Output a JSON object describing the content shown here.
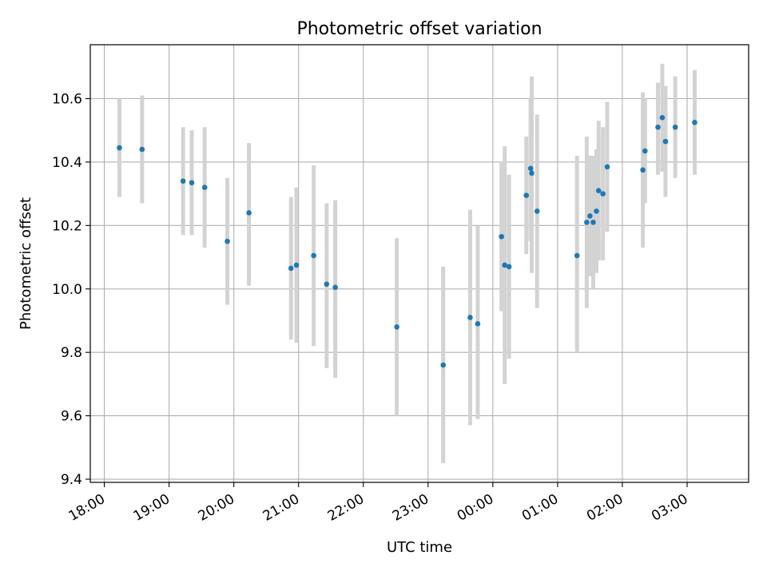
{
  "chart_data": {
    "type": "scatter",
    "title": "Photometric offset variation",
    "xlabel": "UTC time",
    "ylabel": "Photometric offset",
    "xlim": [
      "17:47",
      "03:57"
    ],
    "ylim": [
      9.39,
      10.77
    ],
    "grid": true,
    "legend": "none",
    "x_ticks": [
      "18:00",
      "19:00",
      "20:00",
      "21:00",
      "22:00",
      "23:00",
      "00:00",
      "01:00",
      "02:00",
      "03:00"
    ],
    "y_ticks": [
      "9.4",
      "9.6",
      "9.8",
      "10.0",
      "10.2",
      "10.4",
      "10.6"
    ],
    "marker_color": "#1f77b4",
    "errorbar_color": "#d3d3d3",
    "points": [
      {
        "t": "18:14",
        "y": 10.445,
        "lo": 10.29,
        "hi": 10.6
      },
      {
        "t": "18:35",
        "y": 10.44,
        "lo": 10.27,
        "hi": 10.61
      },
      {
        "t": "19:13",
        "y": 10.34,
        "lo": 10.17,
        "hi": 10.51
      },
      {
        "t": "19:21",
        "y": 10.335,
        "lo": 10.17,
        "hi": 10.5
      },
      {
        "t": "19:33",
        "y": 10.32,
        "lo": 10.13,
        "hi": 10.51
      },
      {
        "t": "19:54",
        "y": 10.15,
        "lo": 9.95,
        "hi": 10.35
      },
      {
        "t": "20:14",
        "y": 10.24,
        "lo": 10.01,
        "hi": 10.46
      },
      {
        "t": "20:53",
        "y": 10.065,
        "lo": 9.84,
        "hi": 10.29
      },
      {
        "t": "20:58",
        "y": 10.075,
        "lo": 9.83,
        "hi": 10.32
      },
      {
        "t": "21:14",
        "y": 10.105,
        "lo": 9.82,
        "hi": 10.39
      },
      {
        "t": "21:26",
        "y": 10.015,
        "lo": 9.75,
        "hi": 10.27
      },
      {
        "t": "21:34",
        "y": 10.005,
        "lo": 9.72,
        "hi": 10.28
      },
      {
        "t": "22:31",
        "y": 9.88,
        "lo": 9.6,
        "hi": 10.16
      },
      {
        "t": "23:14",
        "y": 9.76,
        "lo": 9.45,
        "hi": 10.07
      },
      {
        "t": "23:39",
        "y": 9.91,
        "lo": 9.57,
        "hi": 10.25
      },
      {
        "t": "23:46",
        "y": 9.89,
        "lo": 9.59,
        "hi": 10.2
      },
      {
        "t": "00:08",
        "y": 10.165,
        "lo": 9.93,
        "hi": 10.4
      },
      {
        "t": "00:11",
        "y": 10.075,
        "lo": 9.7,
        "hi": 10.45
      },
      {
        "t": "00:15",
        "y": 10.07,
        "lo": 9.78,
        "hi": 10.36
      },
      {
        "t": "00:31",
        "y": 10.295,
        "lo": 10.11,
        "hi": 10.48
      },
      {
        "t": "00:35",
        "y": 10.38,
        "lo": 10.15,
        "hi": 10.6
      },
      {
        "t": "00:36",
        "y": 10.365,
        "lo": 10.05,
        "hi": 10.67
      },
      {
        "t": "00:41",
        "y": 10.245,
        "lo": 9.94,
        "hi": 10.55
      },
      {
        "t": "01:18",
        "y": 10.105,
        "lo": 9.8,
        "hi": 10.42
      },
      {
        "t": "01:27",
        "y": 10.21,
        "lo": 9.94,
        "hi": 10.48
      },
      {
        "t": "01:30",
        "y": 10.23,
        "lo": 10.04,
        "hi": 10.42
      },
      {
        "t": "01:33",
        "y": 10.21,
        "lo": 10.0,
        "hi": 10.42
      },
      {
        "t": "01:36",
        "y": 10.245,
        "lo": 10.05,
        "hi": 10.44
      },
      {
        "t": "01:38",
        "y": 10.31,
        "lo": 10.09,
        "hi": 10.53
      },
      {
        "t": "01:42",
        "y": 10.3,
        "lo": 10.09,
        "hi": 10.51
      },
      {
        "t": "01:46",
        "y": 10.385,
        "lo": 10.18,
        "hi": 10.59
      },
      {
        "t": "02:19",
        "y": 10.375,
        "lo": 10.13,
        "hi": 10.62
      },
      {
        "t": "02:21",
        "y": 10.435,
        "lo": 10.27,
        "hi": 10.6
      },
      {
        "t": "02:33",
        "y": 10.51,
        "lo": 10.36,
        "hi": 10.65
      },
      {
        "t": "02:37",
        "y": 10.54,
        "lo": 10.37,
        "hi": 10.71
      },
      {
        "t": "02:40",
        "y": 10.465,
        "lo": 10.29,
        "hi": 10.64
      },
      {
        "t": "02:49",
        "y": 10.51,
        "lo": 10.35,
        "hi": 10.67
      },
      {
        "t": "03:07",
        "y": 10.525,
        "lo": 10.36,
        "hi": 10.69
      }
    ]
  }
}
